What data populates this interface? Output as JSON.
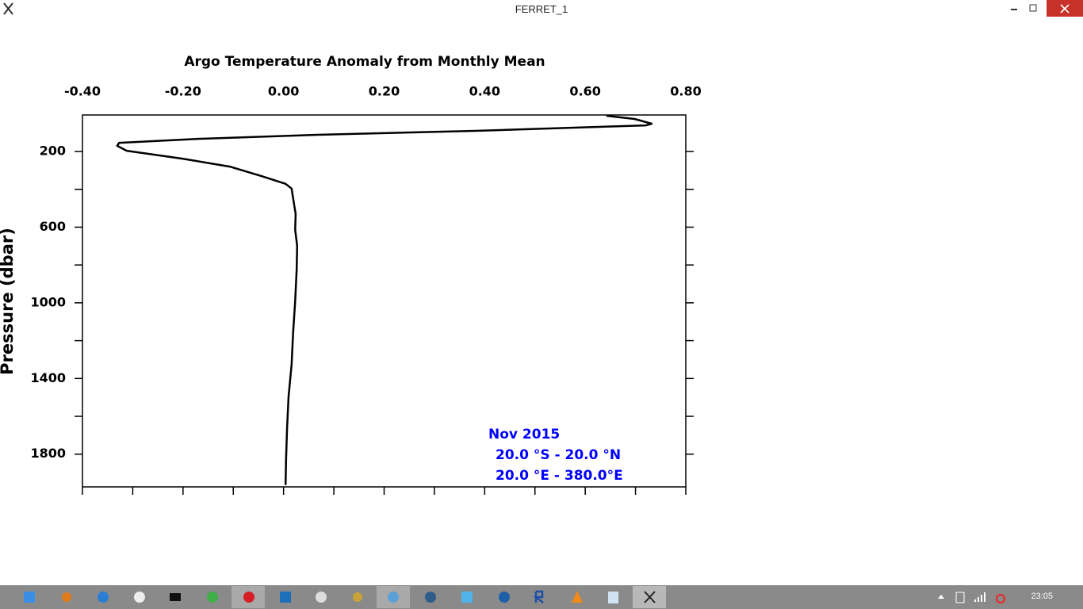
{
  "window": {
    "title": "FERRET_1"
  },
  "chart_data": {
    "type": "line",
    "title": "Argo Temperature Anomaly from Monthly Mean",
    "ylabel": "Pressure (dbar)",
    "pressure": [
      11,
      28,
      53,
      62,
      91,
      112,
      133,
      154,
      170,
      196,
      238,
      280,
      330,
      371,
      396,
      447,
      530,
      614,
      698,
      824,
      991,
      1159,
      1326,
      1494,
      1662,
      1829,
      1963
    ],
    "series": [
      {
        "color": "#000000",
        "values": [
          0.642,
          0.698,
          0.732,
          0.721,
          0.382,
          0.067,
          -0.17,
          -0.327,
          -0.331,
          -0.312,
          -0.201,
          -0.107,
          -0.044,
          0.004,
          0.016,
          0.019,
          0.024,
          0.023,
          0.027,
          0.026,
          0.023,
          0.019,
          0.016,
          0.01,
          0.007,
          0.005,
          0.004
        ]
      }
    ],
    "xlim": [
      -0.4,
      0.8
    ],
    "xticks": [
      {
        "value": -0.4,
        "label": "-0.40"
      },
      {
        "value": -0.2,
        "label": "-0.20"
      },
      {
        "value": 0,
        "label": "0.00"
      },
      {
        "value": 0.2,
        "label": "0.20"
      },
      {
        "value": 0.4,
        "label": "0.40"
      },
      {
        "value": 0.6,
        "label": "0.60"
      },
      {
        "value": 0.8,
        "label": "0.80"
      }
    ],
    "xminor_ticks": [
      -0.3,
      -0.1,
      0.1,
      0.3,
      0.5,
      0.7
    ],
    "ylim": [
      7,
      1973
    ],
    "y_inverted": true,
    "yticks": [
      200,
      600,
      1000,
      1400,
      1800
    ],
    "yminor_ticks": [
      400,
      800,
      1200,
      1600
    ],
    "annotation_color": "#0000ff",
    "annotations": [
      "Nov 2015",
      "20.0 °S - 20.0 °N",
      "20.0 °E - 380.0°E"
    ]
  },
  "taskbar": {
    "clock": "23:05"
  }
}
